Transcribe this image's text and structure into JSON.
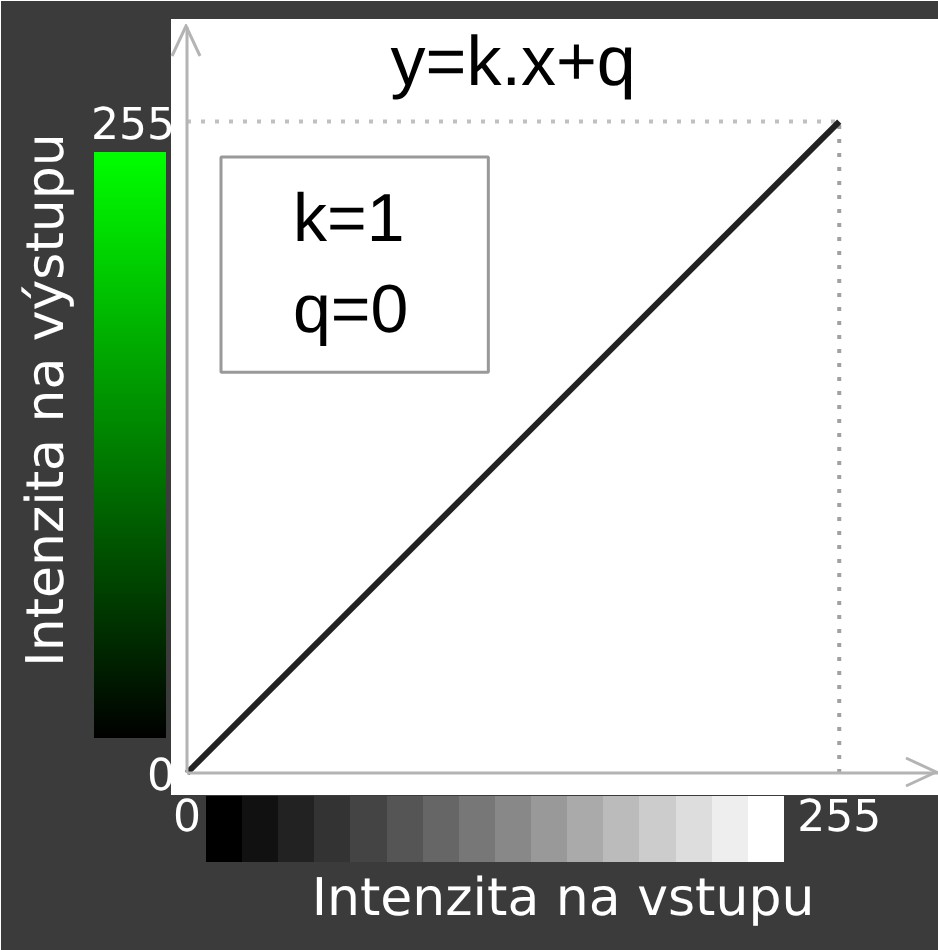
{
  "chart_data": {
    "type": "line",
    "title": "y=k.x+q",
    "xlabel": "Intenzita na vstupu",
    "ylabel": "Intenzita na výstupu",
    "annotations": [
      "k=1\nq=0"
    ],
    "x": [
      0,
      255
    ],
    "series": [
      {
        "color": "#222222",
        "values": [
          0,
          255
        ]
      }
    ],
    "xlim": [
      0,
      294
    ],
    "ylim": [
      0,
      292
    ],
    "xticks": [
      0,
      255
    ],
    "yticks": [
      0,
      255
    ],
    "ref_lines": [
      {
        "axis": "x",
        "value": 255,
        "color": "#a0a0a0",
        "line_style": "dotted"
      },
      {
        "axis": "y",
        "value": 255,
        "color": "#c0c0c0",
        "line_style": "dotted"
      }
    ]
  }
}
